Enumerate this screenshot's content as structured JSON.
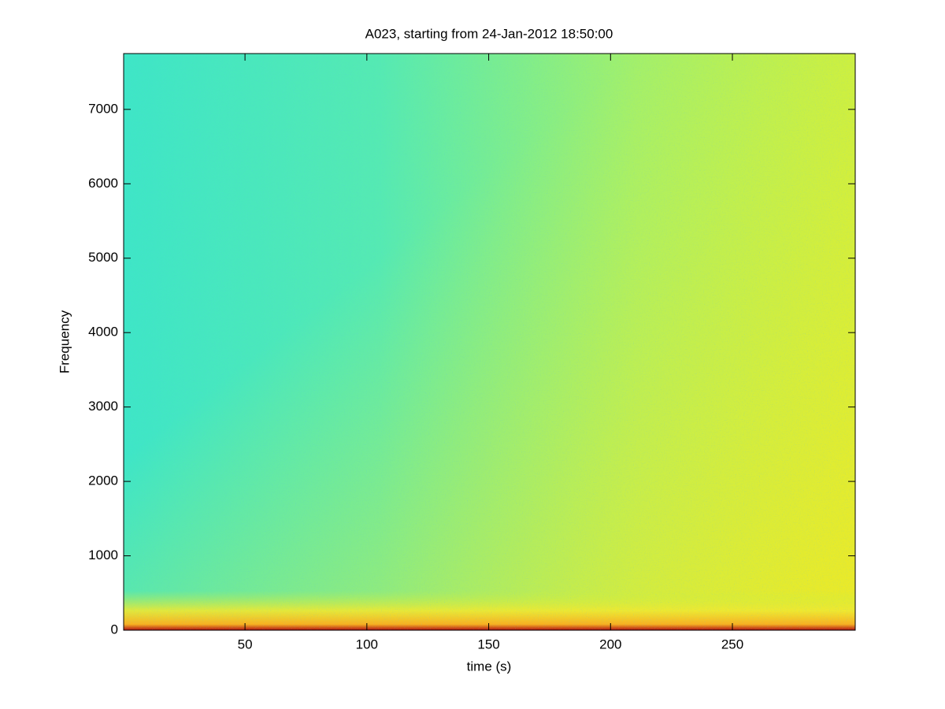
{
  "chart_data": {
    "type": "spectrogram",
    "title": "A023, starting from 24-Jan-2012 18:50:00",
    "xlabel": "time (s)",
    "ylabel": "Frequency",
    "xlim": [
      0.2,
      300.4
    ],
    "xticks": [
      50,
      100,
      150,
      200,
      250
    ],
    "ylim": [
      0,
      7750
    ],
    "yticks": [
      0,
      1000,
      2000,
      3000,
      4000,
      5000,
      6000,
      7000
    ]
  }
}
